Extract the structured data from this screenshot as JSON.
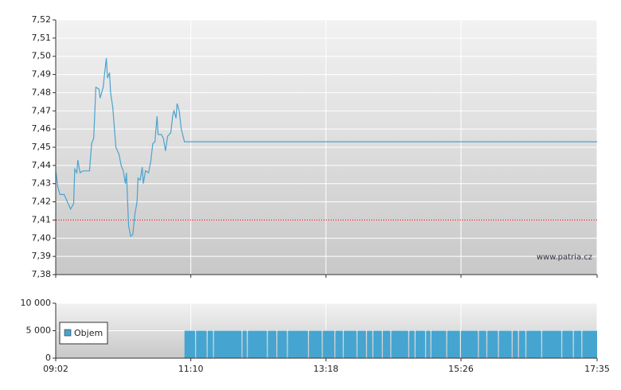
{
  "chart_data": [
    {
      "type": "line",
      "color": "#4aa3cf",
      "grid": true,
      "reference_line": 7.41,
      "reference_color": "#e05050",
      "watermark": "www.patria.cz",
      "xlim": [
        542,
        1055
      ],
      "xticks": [
        {
          "value": 542,
          "label": "09:02"
        },
        {
          "value": 670,
          "label": "11:10"
        },
        {
          "value": 798,
          "label": "13:18"
        },
        {
          "value": 926,
          "label": "15:26"
        },
        {
          "value": 1055,
          "label": "17:35"
        }
      ],
      "ylim": [
        7.38,
        7.52
      ],
      "yticks": [
        {
          "value": 7.38,
          "label": "7,38"
        },
        {
          "value": 7.39,
          "label": "7,39"
        },
        {
          "value": 7.4,
          "label": "7,40"
        },
        {
          "value": 7.41,
          "label": "7,41"
        },
        {
          "value": 7.42,
          "label": "7,42"
        },
        {
          "value": 7.43,
          "label": "7,43"
        },
        {
          "value": 7.44,
          "label": "7,44"
        },
        {
          "value": 7.45,
          "label": "7,45"
        },
        {
          "value": 7.46,
          "label": "7,46"
        },
        {
          "value": 7.47,
          "label": "7,47"
        },
        {
          "value": 7.48,
          "label": "7,48"
        },
        {
          "value": 7.49,
          "label": "7,49"
        },
        {
          "value": 7.5,
          "label": "7,50"
        },
        {
          "value": 7.51,
          "label": "7,51"
        },
        {
          "value": 7.52,
          "label": "7,52"
        }
      ],
      "x": [
        542,
        544,
        546,
        550,
        553,
        556,
        559,
        560,
        562,
        563,
        565,
        568,
        572,
        574,
        576,
        578,
        580,
        583,
        584,
        587,
        588,
        590,
        591,
        593,
        594,
        596,
        599,
        602,
        604,
        606,
        608,
        609,
        611,
        613,
        615,
        617,
        619,
        620,
        622,
        624,
        625,
        627,
        630,
        632,
        634,
        636,
        638,
        639,
        642,
        644,
        646,
        648,
        651,
        653,
        654,
        656,
        657,
        659,
        661,
        664,
        1055
      ],
      "values": [
        7.437,
        7.428,
        7.424,
        7.424,
        7.42,
        7.416,
        7.419,
        7.438,
        7.436,
        7.443,
        7.436,
        7.437,
        7.437,
        7.437,
        7.452,
        7.455,
        7.483,
        7.482,
        7.477,
        7.483,
        7.489,
        7.499,
        7.488,
        7.491,
        7.48,
        7.472,
        7.45,
        7.446,
        7.44,
        7.437,
        7.43,
        7.436,
        7.407,
        7.401,
        7.402,
        7.413,
        7.42,
        7.433,
        7.432,
        7.439,
        7.43,
        7.437,
        7.436,
        7.442,
        7.452,
        7.453,
        7.467,
        7.457,
        7.457,
        7.455,
        7.448,
        7.456,
        7.458,
        7.468,
        7.47,
        7.466,
        7.474,
        7.47,
        7.46,
        7.453,
        7.453
      ]
    },
    {
      "type": "histogram",
      "grid": true,
      "legend": "left",
      "xlim": [
        542,
        1055
      ],
      "xticks": [
        {
          "value": 542,
          "label": "09:02"
        },
        {
          "value": 670,
          "label": "11:10"
        },
        {
          "value": 798,
          "label": "13:18"
        },
        {
          "value": 926,
          "label": "15:26"
        },
        {
          "value": 1055,
          "label": "17:35"
        }
      ],
      "ylim": [
        0,
        10000
      ],
      "yticks": [
        0,
        {
          "value": 5000,
          "label": "5 000"
        },
        {
          "value": 10000,
          "label": "10 000"
        }
      ],
      "bins": [
        664,
        674,
        675,
        685,
        686,
        691,
        692,
        718,
        719,
        723,
        724,
        742,
        743,
        751,
        752,
        761,
        762,
        781,
        782,
        794,
        795,
        806,
        807,
        814,
        815,
        827,
        828,
        836,
        837,
        842,
        843,
        851,
        852,
        859,
        860,
        876,
        877,
        882,
        883,
        892,
        893,
        897,
        898,
        912,
        913,
        925,
        926,
        942,
        943,
        950,
        951,
        961,
        962,
        974,
        975,
        980,
        981,
        987,
        988,
        1002,
        1003,
        1021,
        1022,
        1032,
        1033,
        1040,
        1041,
        1055
      ],
      "series": [
        {
          "name": "Objem",
          "color": "#45a5d0",
          "values": [
            5000,
            0,
            5000,
            0,
            5000,
            0,
            5000,
            0,
            5000,
            0,
            5000,
            0,
            5000,
            0,
            5000,
            0,
            5000,
            0,
            5000,
            0,
            5000,
            0,
            5000,
            0,
            5000,
            0,
            5000,
            0,
            5000,
            0,
            5000,
            0,
            5000,
            0,
            5000,
            0,
            5000,
            0,
            5000,
            0,
            5000,
            0,
            5000,
            0,
            5000,
            0,
            5000,
            0,
            5000,
            0,
            5000,
            0,
            5000,
            0,
            5000,
            0,
            5000,
            0,
            5000,
            0,
            5000,
            0,
            5000,
            0,
            5000,
            0,
            5000
          ]
        }
      ]
    }
  ]
}
